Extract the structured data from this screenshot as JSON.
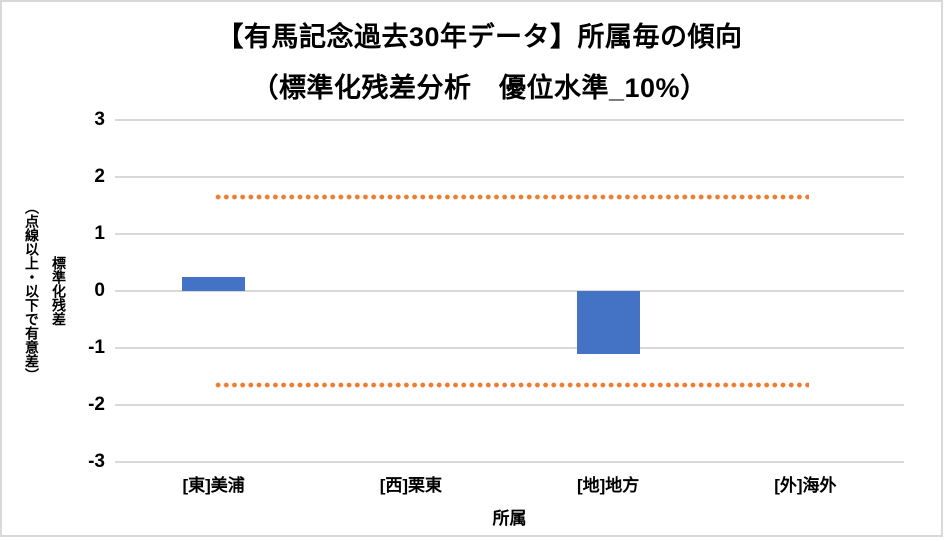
{
  "chart": {
    "title_line1": "【有馬記念過去30年データ】所属毎の傾向",
    "title_line2": "（標準化残差分析　優位水準_10%）",
    "y_axis_title": "標準化残差\n（点線以上・以下で有意差）",
    "x_axis_title": "所属"
  },
  "chart_data": {
    "type": "bar",
    "title": "【有馬記念過去30年データ】所属毎の傾向（標準化残差分析　優位水準_10%）",
    "categories": [
      "[東]美浦",
      "[西]栗東",
      "[地]地方",
      "[外]海外"
    ],
    "values": [
      0.25,
      0,
      -1.1,
      0
    ],
    "xlabel": "所属",
    "ylabel": "標準化残差（点線以上・以下で有意差）",
    "ylim": [
      -3,
      3
    ],
    "yticks": [
      3,
      2,
      1,
      0,
      -1,
      -2,
      -3
    ],
    "grid": true,
    "legend": "none",
    "threshold_lines": {
      "values": [
        1.645,
        -1.645
      ],
      "style": "dotted",
      "color": "#ED7D31",
      "meaning": "10% significance level"
    },
    "bar_color": "#4472C4",
    "gridline_color": "#D9D9D9",
    "frame_color": "#D9D9D9",
    "text_color": "#000000"
  }
}
